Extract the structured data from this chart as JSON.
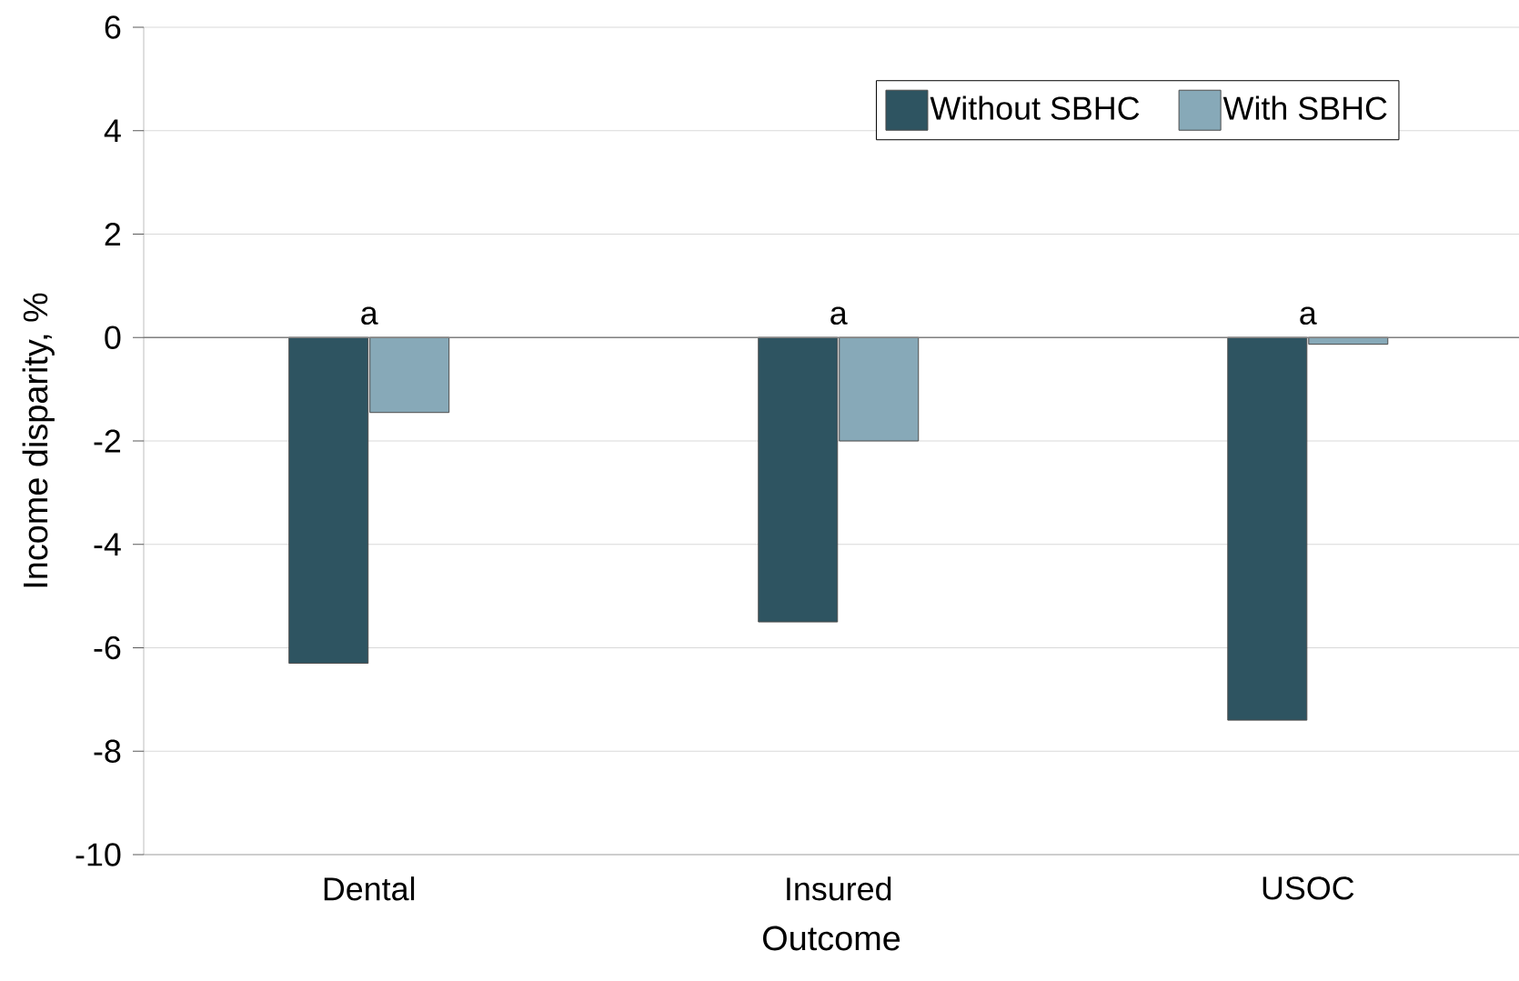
{
  "chart_data": {
    "type": "bar",
    "xlabel": "Outcome",
    "ylabel": "Income disparity, %",
    "categories": [
      "Dental",
      "Insured",
      "USOC"
    ],
    "series": [
      {
        "name": "Without SBHC",
        "color": "#2e5461",
        "values": [
          -6.3,
          -5.5,
          -7.4
        ]
      },
      {
        "name": "With SBHC",
        "color": "#87a9b8",
        "values": [
          -1.45,
          -2.0,
          -0.13
        ]
      }
    ],
    "ylim": [
      -10,
      6
    ],
    "yticks": [
      -10,
      -8,
      -6,
      -4,
      -2,
      0,
      2,
      4,
      6
    ],
    "grid": "y",
    "legend": "top right",
    "ref_lines": [
      {
        "axis": "y",
        "value": 0,
        "color": "#808080"
      }
    ],
    "annotations": [
      "a",
      "a",
      "a"
    ]
  }
}
